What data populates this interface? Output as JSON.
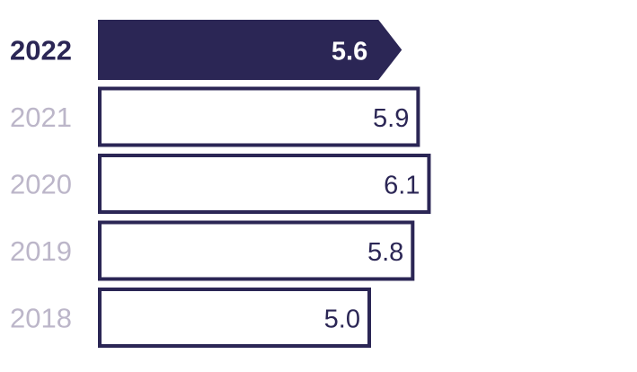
{
  "chart_data": {
    "type": "bar",
    "orientation": "horizontal",
    "categories": [
      "2022",
      "2021",
      "2020",
      "2019",
      "2018"
    ],
    "values": [
      5.6,
      5.9,
      6.1,
      5.8,
      5.0
    ],
    "value_labels": [
      "5.6",
      "5.9",
      "6.1",
      "5.8",
      "5.0"
    ],
    "highlight": "2022",
    "title": "",
    "xlabel": "",
    "ylabel": "",
    "grid": false,
    "legend": "none",
    "colors": {
      "accent": "#2b2655",
      "outline": "#2b2655",
      "muted_label": "#bcb6c9",
      "bar_fill": "#ffffff"
    }
  }
}
